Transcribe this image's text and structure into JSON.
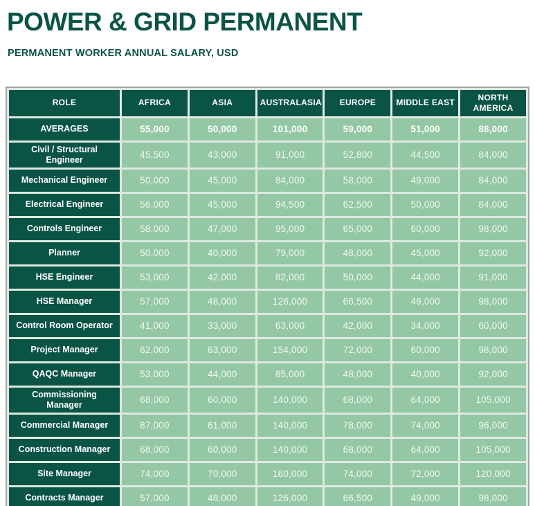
{
  "page": {
    "title": "POWER & GRID PERMANENT",
    "subtitle": "PERMANENT WORKER ANNUAL SALARY, USD"
  },
  "colors": {
    "dark_green": "#0a5446",
    "light_green": "#94c7a3",
    "grid_gap": "#dfe9e2",
    "outer_border": "#9ca5a1",
    "page_bg": "#ffffff"
  },
  "table": {
    "columns": [
      "ROLE",
      "AFRICA",
      "ASIA",
      "AUSTRALASIA",
      "EUROPE",
      "MIDDLE EAST",
      "NORTH\nAMERICA"
    ],
    "rows": [
      {
        "role": "AVERAGES",
        "emphasis": true,
        "values": [
          "55,000",
          "50,000",
          "101,000",
          "59,000",
          "51,000",
          "88,000"
        ]
      },
      {
        "role": "Civil / Structural\nEngineer",
        "emphasis": false,
        "values": [
          "45,500",
          "43,000",
          "91,000",
          "52,800",
          "44,500",
          "84,000"
        ]
      },
      {
        "role": "Mechanical Engineer",
        "emphasis": false,
        "values": [
          "50,000",
          "45,000",
          "84,000",
          "58,000",
          "49,000",
          "84,000"
        ]
      },
      {
        "role": "Electrical Engineer",
        "emphasis": false,
        "values": [
          "56,000",
          "45,000",
          "94,500",
          "62,500",
          "50,000",
          "84,000"
        ]
      },
      {
        "role": "Controls Engineer",
        "emphasis": false,
        "values": [
          "58,000",
          "47,000",
          "95,000",
          "65,000",
          "60,000",
          "98,000"
        ]
      },
      {
        "role": "Planner",
        "emphasis": false,
        "values": [
          "50,000",
          "40,000",
          "79,000",
          "48,000",
          "45,000",
          "92,000"
        ]
      },
      {
        "role": "HSE Engineer",
        "emphasis": false,
        "values": [
          "53,000",
          "42,000",
          "82,000",
          "50,000",
          "44,000",
          "91,000"
        ]
      },
      {
        "role": "HSE Manager",
        "emphasis": false,
        "values": [
          "57,000",
          "48,000",
          "126,000",
          "66,500",
          "49,000",
          "98,000"
        ]
      },
      {
        "role": "Control Room Operator",
        "emphasis": false,
        "values": [
          "41,000",
          "33,000",
          "63,000",
          "42,000",
          "34,000",
          "60,000"
        ]
      },
      {
        "role": "Project Manager",
        "emphasis": false,
        "values": [
          "62,000",
          "63,000",
          "154,000",
          "72,000",
          "60,000",
          "98,000"
        ]
      },
      {
        "role": "QAQC Manager",
        "emphasis": false,
        "values": [
          "53,000",
          "44,000",
          "85,000",
          "48,000",
          "40,000",
          "92,000"
        ]
      },
      {
        "role": "Commissioning\nManager",
        "emphasis": false,
        "values": [
          "68,000",
          "60,000",
          "140,000",
          "68,000",
          "64,000",
          "105,000"
        ]
      },
      {
        "role": "Commercial Manager",
        "emphasis": false,
        "values": [
          "87,000",
          "61,000",
          "140,000",
          "78,000",
          "74,000",
          "96,000"
        ]
      },
      {
        "role": "Construction Manager",
        "emphasis": false,
        "values": [
          "68,000",
          "60,000",
          "140,000",
          "68,000",
          "64,000",
          "105,000"
        ]
      },
      {
        "role": "Site Manager",
        "emphasis": false,
        "values": [
          "74,000",
          "70,000",
          "160,000",
          "74,000",
          "72,000",
          "120,000"
        ]
      },
      {
        "role": "Contracts Manager",
        "emphasis": false,
        "values": [
          "57,000",
          "48,000",
          "126,000",
          "66,500",
          "49,000",
          "98,000"
        ]
      }
    ]
  },
  "chart_data": {
    "type": "table",
    "title": "POWER & GRID PERMANENT",
    "subtitle": "PERMANENT WORKER ANNUAL SALARY, USD",
    "columns": [
      "AFRICA",
      "ASIA",
      "AUSTRALASIA",
      "EUROPE",
      "MIDDLE EAST",
      "NORTH AMERICA"
    ],
    "rows": [
      {
        "role": "AVERAGES",
        "values": [
          55000,
          50000,
          101000,
          59000,
          51000,
          88000
        ]
      },
      {
        "role": "Civil / Structural Engineer",
        "values": [
          45500,
          43000,
          91000,
          52800,
          44500,
          84000
        ]
      },
      {
        "role": "Mechanical Engineer",
        "values": [
          50000,
          45000,
          84000,
          58000,
          49000,
          84000
        ]
      },
      {
        "role": "Electrical Engineer",
        "values": [
          56000,
          45000,
          94500,
          62500,
          50000,
          84000
        ]
      },
      {
        "role": "Controls Engineer",
        "values": [
          58000,
          47000,
          95000,
          65000,
          60000,
          98000
        ]
      },
      {
        "role": "Planner",
        "values": [
          50000,
          40000,
          79000,
          48000,
          45000,
          92000
        ]
      },
      {
        "role": "HSE Engineer",
        "values": [
          53000,
          42000,
          82000,
          50000,
          44000,
          91000
        ]
      },
      {
        "role": "HSE Manager",
        "values": [
          57000,
          48000,
          126000,
          66500,
          49000,
          98000
        ]
      },
      {
        "role": "Control Room Operator",
        "values": [
          41000,
          33000,
          63000,
          42000,
          34000,
          60000
        ]
      },
      {
        "role": "Project Manager",
        "values": [
          62000,
          63000,
          154000,
          72000,
          60000,
          98000
        ]
      },
      {
        "role": "QAQC Manager",
        "values": [
          53000,
          44000,
          85000,
          48000,
          40000,
          92000
        ]
      },
      {
        "role": "Commissioning Manager",
        "values": [
          68000,
          60000,
          140000,
          68000,
          64000,
          105000
        ]
      },
      {
        "role": "Commercial Manager",
        "values": [
          87000,
          61000,
          140000,
          78000,
          74000,
          96000
        ]
      },
      {
        "role": "Construction Manager",
        "values": [
          68000,
          60000,
          140000,
          68000,
          64000,
          105000
        ]
      },
      {
        "role": "Site Manager",
        "values": [
          74000,
          70000,
          160000,
          74000,
          72000,
          120000
        ]
      },
      {
        "role": "Contracts Manager",
        "values": [
          57000,
          48000,
          126000,
          66500,
          49000,
          98000
        ]
      }
    ]
  }
}
